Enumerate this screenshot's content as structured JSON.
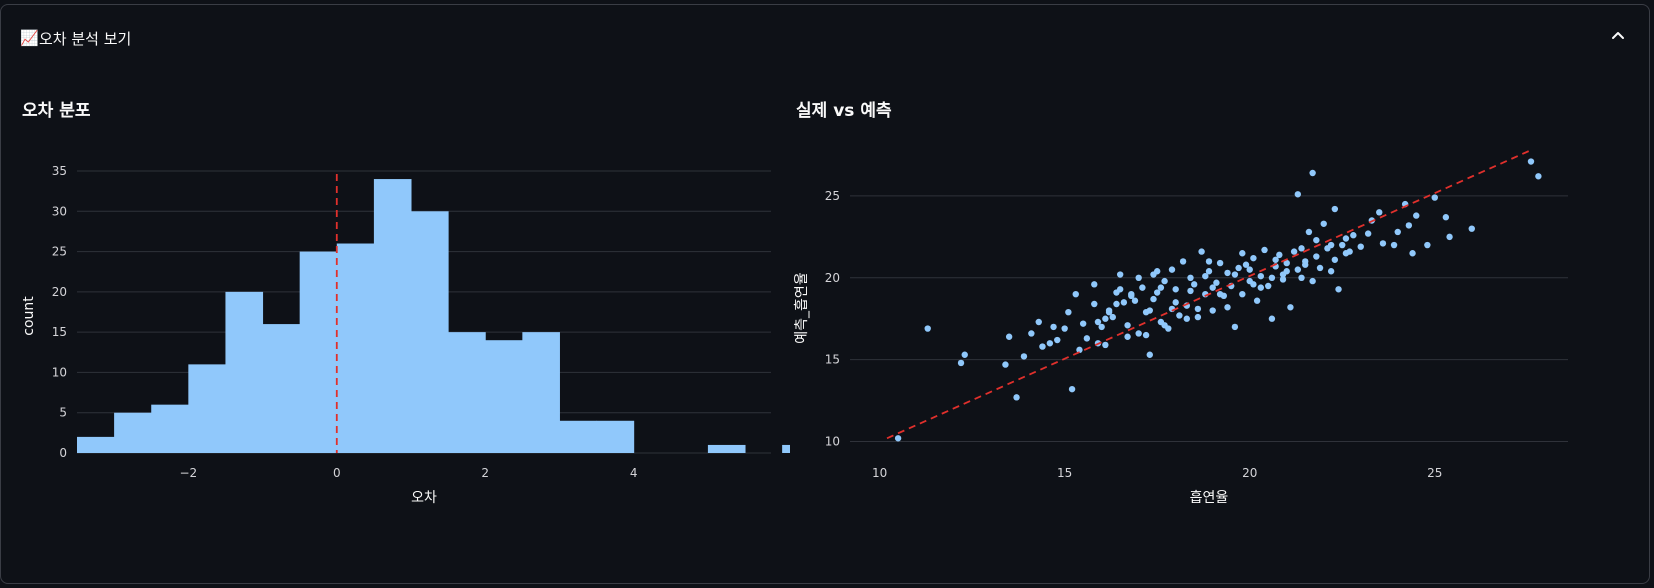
{
  "expander": {
    "title": "오차 분석 보기",
    "icon": "chart-increasing-icon",
    "expanded": true
  },
  "colors": {
    "bars": "#90c8fb",
    "points": "#90c8fb",
    "reference_line": "#e0302c",
    "grid": "#2f323a",
    "background": "#0e1117",
    "text": "#fafafa",
    "axis_text": "#d4d4d8"
  },
  "chart_data": [
    {
      "type": "bar",
      "title": "오차 분포",
      "xlabel": "오차",
      "ylabel": "count",
      "bin_start": -3.5,
      "bin_width": 0.5,
      "values": [
        2,
        5,
        6,
        11,
        20,
        16,
        25,
        26,
        34,
        30,
        15,
        14,
        15,
        4,
        4,
        0,
        0,
        1,
        0,
        1
      ],
      "xlim": [
        -3.5,
        5.85
      ],
      "ylim": [
        0,
        35
      ],
      "xticks": [
        -2,
        0,
        2,
        4
      ],
      "xtick_labels": [
        "−2",
        "0",
        "2",
        "4"
      ],
      "yticks": [
        0,
        5,
        10,
        15,
        20,
        25,
        30,
        35
      ],
      "reference_line_x": 0,
      "grid": "horizontal"
    },
    {
      "type": "scatter",
      "title": "실제 vs 예측",
      "xlabel": "흡연율",
      "ylabel": "예측_흡연율",
      "xlim": [
        9.2,
        28.6
      ],
      "ylim": [
        9.3,
        27.5
      ],
      "xticks": [
        10,
        15,
        20,
        25
      ],
      "yticks": [
        10,
        15,
        20,
        25
      ],
      "reference_line": {
        "from": [
          10.2,
          10.2
        ],
        "to": [
          27.6,
          27.8
        ]
      },
      "grid": "horizontal",
      "points": [
        [
          10.5,
          10.2
        ],
        [
          11.3,
          16.9
        ],
        [
          12.2,
          14.8
        ],
        [
          12.3,
          15.3
        ],
        [
          13.4,
          14.7
        ],
        [
          13.5,
          16.4
        ],
        [
          13.7,
          12.7
        ],
        [
          14.1,
          16.6
        ],
        [
          14.3,
          17.3
        ],
        [
          14.6,
          16.0
        ],
        [
          14.7,
          17.0
        ],
        [
          14.8,
          16.2
        ],
        [
          15.0,
          16.9
        ],
        [
          15.1,
          17.9
        ],
        [
          15.3,
          19.0
        ],
        [
          15.2,
          13.2
        ],
        [
          15.4,
          15.6
        ],
        [
          15.6,
          16.3
        ],
        [
          15.8,
          18.4
        ],
        [
          15.8,
          19.6
        ],
        [
          15.9,
          17.3
        ],
        [
          16.0,
          17.0
        ],
        [
          16.1,
          15.9
        ],
        [
          16.2,
          18.0
        ],
        [
          16.3,
          17.6
        ],
        [
          16.4,
          18.4
        ],
        [
          16.5,
          19.3
        ],
        [
          16.5,
          20.2
        ],
        [
          16.6,
          18.5
        ],
        [
          16.7,
          17.1
        ],
        [
          16.8,
          19.0
        ],
        [
          16.9,
          18.6
        ],
        [
          17.0,
          16.6
        ],
        [
          17.0,
          20.0
        ],
        [
          17.1,
          19.4
        ],
        [
          17.2,
          17.9
        ],
        [
          17.3,
          15.3
        ],
        [
          17.4,
          18.7
        ],
        [
          17.5,
          19.1
        ],
        [
          17.5,
          20.4
        ],
        [
          17.6,
          17.3
        ],
        [
          17.7,
          19.8
        ],
        [
          17.8,
          16.9
        ],
        [
          17.9,
          18.1
        ],
        [
          17.9,
          20.5
        ],
        [
          18.0,
          19.3
        ],
        [
          18.1,
          17.7
        ],
        [
          18.2,
          21.0
        ],
        [
          18.3,
          18.3
        ],
        [
          18.4,
          20.0
        ],
        [
          18.5,
          19.6
        ],
        [
          18.6,
          18.1
        ],
        [
          18.7,
          21.6
        ],
        [
          18.8,
          19.0
        ],
        [
          18.9,
          20.4
        ],
        [
          19.0,
          18.0
        ],
        [
          19.1,
          19.7
        ],
        [
          19.2,
          20.9
        ],
        [
          19.3,
          18.9
        ],
        [
          19.4,
          20.3
        ],
        [
          19.5,
          19.5
        ],
        [
          19.6,
          17.0
        ],
        [
          19.7,
          20.6
        ],
        [
          19.8,
          19.0
        ],
        [
          19.9,
          20.8
        ],
        [
          20.0,
          19.8
        ],
        [
          20.1,
          21.2
        ],
        [
          20.2,
          18.6
        ],
        [
          20.3,
          20.1
        ],
        [
          20.4,
          21.7
        ],
        [
          20.5,
          19.5
        ],
        [
          20.6,
          17.5
        ],
        [
          20.7,
          20.7
        ],
        [
          20.8,
          21.4
        ],
        [
          20.9,
          19.9
        ],
        [
          21.0,
          20.9
        ],
        [
          21.1,
          18.2
        ],
        [
          21.2,
          21.6
        ],
        [
          21.3,
          20.5
        ],
        [
          21.3,
          25.1
        ],
        [
          21.4,
          20.0
        ],
        [
          21.5,
          21.0
        ],
        [
          21.6,
          22.8
        ],
        [
          21.7,
          19.8
        ],
        [
          21.7,
          26.4
        ],
        [
          21.8,
          21.3
        ],
        [
          21.9,
          20.6
        ],
        [
          22.0,
          23.3
        ],
        [
          22.1,
          21.8
        ],
        [
          22.2,
          20.4
        ],
        [
          22.3,
          24.2
        ],
        [
          22.4,
          19.3
        ],
        [
          22.5,
          22.0
        ],
        [
          22.6,
          21.5
        ],
        [
          22.7,
          21.6
        ],
        [
          22.8,
          22.6
        ],
        [
          23.0,
          21.9
        ],
        [
          23.2,
          22.7
        ],
        [
          23.3,
          23.5
        ],
        [
          23.5,
          24.0
        ],
        [
          23.9,
          22.0
        ],
        [
          24.2,
          24.5
        ],
        [
          24.3,
          23.2
        ],
        [
          24.4,
          21.5
        ],
        [
          24.5,
          23.8
        ],
        [
          24.8,
          22.0
        ],
        [
          25.0,
          24.9
        ],
        [
          25.3,
          23.7
        ],
        [
          25.4,
          22.5
        ],
        [
          26.0,
          23.0
        ],
        [
          27.6,
          27.1
        ],
        [
          27.8,
          26.2
        ],
        [
          15.5,
          17.2
        ],
        [
          16.2,
          17.9
        ],
        [
          16.8,
          18.9
        ],
        [
          17.3,
          18.0
        ],
        [
          17.6,
          19.4
        ],
        [
          18.0,
          18.5
        ],
        [
          18.4,
          19.2
        ],
        [
          18.8,
          20.1
        ],
        [
          19.2,
          19.0
        ],
        [
          19.6,
          20.2
        ],
        [
          20.0,
          20.5
        ],
        [
          20.3,
          19.4
        ],
        [
          20.7,
          21.1
        ],
        [
          21.0,
          20.4
        ],
        [
          21.4,
          21.8
        ],
        [
          21.8,
          22.3
        ],
        [
          22.2,
          22.0
        ],
        [
          22.6,
          22.4
        ],
        [
          19.4,
          18.2
        ],
        [
          18.6,
          17.6
        ],
        [
          17.7,
          17.1
        ],
        [
          16.7,
          16.4
        ],
        [
          15.9,
          16.0
        ],
        [
          20.9,
          20.2
        ],
        [
          21.5,
          20.8
        ],
        [
          22.3,
          21.1
        ],
        [
          23.6,
          22.1
        ],
        [
          24.0,
          22.8
        ],
        [
          14.4,
          15.8
        ],
        [
          13.9,
          15.2
        ],
        [
          16.1,
          17.5
        ],
        [
          17.2,
          16.5
        ],
        [
          18.3,
          17.5
        ],
        [
          19.0,
          19.4
        ],
        [
          20.1,
          19.6
        ],
        [
          20.6,
          20.0
        ],
        [
          19.8,
          21.5
        ],
        [
          18.9,
          21.0
        ],
        [
          17.4,
          20.2
        ],
        [
          16.4,
          19.1
        ]
      ]
    }
  ]
}
